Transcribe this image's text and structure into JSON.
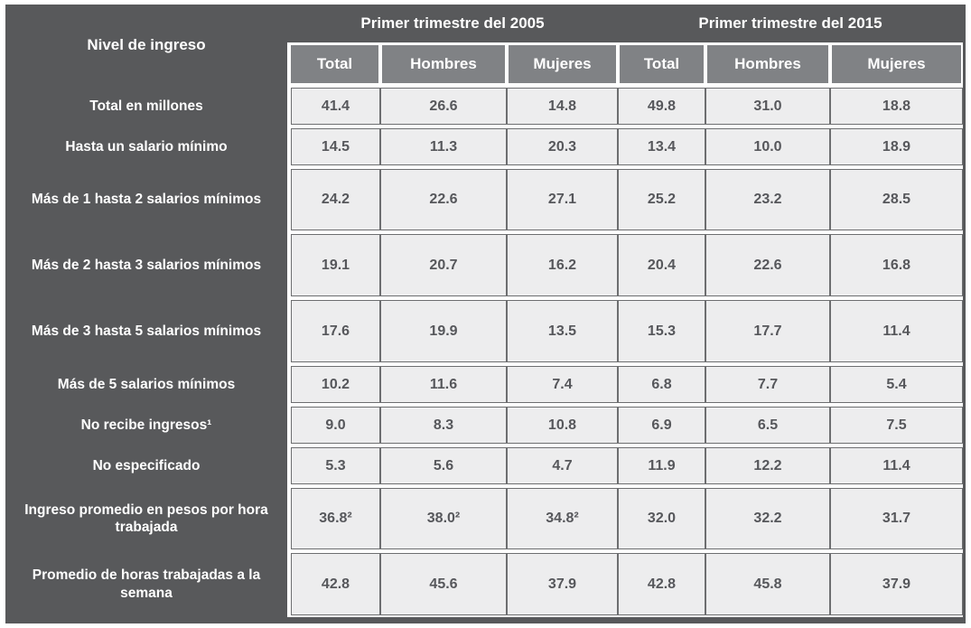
{
  "table": {
    "row_header_label": "Nivel de ingreso",
    "period_headers": {
      "p2005": "Primer trimestre del 2005",
      "p2015": "Primer trimestre del 2015"
    },
    "sub_headers": [
      "Total",
      "Hombres",
      "Mujeres",
      "Total",
      "Hombres",
      "Mujeres"
    ],
    "rows": [
      {
        "label": "Total en millones",
        "values": [
          "41.4",
          "26.6",
          "14.8",
          "49.8",
          "31.0",
          "18.8"
        ]
      },
      {
        "label": "Hasta un salario mínimo",
        "values": [
          "14.5",
          "11.3",
          "20.3",
          "13.4",
          "10.0",
          "18.9"
        ]
      },
      {
        "label": "Más de 1 hasta 2 salarios mínimos",
        "values": [
          "24.2",
          "22.6",
          "27.1",
          "25.2",
          "23.2",
          "28.5"
        ]
      },
      {
        "label": "Más de 2 hasta 3 salarios mínimos",
        "values": [
          "19.1",
          "20.7",
          "16.2",
          "20.4",
          "22.6",
          "16.8"
        ]
      },
      {
        "label": "Más de 3 hasta 5 salarios mínimos",
        "values": [
          "17.6",
          "19.9",
          "13.5",
          "15.3",
          "17.7",
          "11.4"
        ]
      },
      {
        "label": "Más de 5 salarios mínimos",
        "values": [
          "10.2",
          "11.6",
          "7.4",
          "6.8",
          "7.7",
          "5.4"
        ]
      },
      {
        "label": "No recibe ingresos¹",
        "values": [
          "9.0",
          "8.3",
          "10.8",
          "6.9",
          "6.5",
          "7.5"
        ]
      },
      {
        "label": "No especificado",
        "values": [
          "5.3",
          "5.6",
          "4.7",
          "11.9",
          "12.2",
          "11.4"
        ]
      },
      {
        "label": "Ingreso promedio en pesos por hora trabajada",
        "values": [
          "36.8²",
          "38.0²",
          "34.8²",
          "32.0",
          "32.2",
          "31.7"
        ]
      },
      {
        "label": "Promedio de horas trabajadas a la semana",
        "values": [
          "42.8",
          "45.6",
          "37.9",
          "42.8",
          "45.8",
          "37.9"
        ]
      }
    ]
  },
  "colors": {
    "header_dark": "#58595b",
    "subheader_gray": "#808285",
    "cell_background": "#ededee",
    "cell_border": "#6d6e70",
    "cell_text": "#56575b",
    "header_text": "#ffffff"
  },
  "chart_data": {
    "type": "table",
    "title": "Nivel de ingreso",
    "column_groups": [
      "Primer trimestre del 2005",
      "Primer trimestre del 2015"
    ],
    "columns": [
      "Total 2005",
      "Hombres 2005",
      "Mujeres 2005",
      "Total 2015",
      "Hombres 2015",
      "Mujeres 2015"
    ],
    "row_labels": [
      "Total en millones",
      "Hasta un salario mínimo",
      "Más de 1 hasta 2 salarios mínimos",
      "Más de 2 hasta 3 salarios mínimos",
      "Más de 3 hasta 5 salarios mínimos",
      "Más de 5 salarios mínimos",
      "No recibe ingresos¹",
      "No especificado",
      "Ingreso promedio en pesos por hora trabajada",
      "Promedio de horas trabajadas a la semana"
    ],
    "values": [
      [
        41.4,
        26.6,
        14.8,
        49.8,
        31.0,
        18.8
      ],
      [
        14.5,
        11.3,
        20.3,
        13.4,
        10.0,
        18.9
      ],
      [
        24.2,
        22.6,
        27.1,
        25.2,
        23.2,
        28.5
      ],
      [
        19.1,
        20.7,
        16.2,
        20.4,
        22.6,
        16.8
      ],
      [
        17.6,
        19.9,
        13.5,
        15.3,
        17.7,
        11.4
      ],
      [
        10.2,
        11.6,
        7.4,
        6.8,
        7.7,
        5.4
      ],
      [
        9.0,
        8.3,
        10.8,
        6.9,
        6.5,
        7.5
      ],
      [
        5.3,
        5.6,
        4.7,
        11.9,
        12.2,
        11.4
      ],
      [
        36.8,
        38.0,
        34.8,
        32.0,
        32.2,
        31.7
      ],
      [
        42.8,
        45.6,
        37.9,
        42.8,
        45.8,
        37.9
      ]
    ],
    "footnote_markers": {
      "row_6_label": "superscript 1",
      "row_8_2005_values": "superscript 2"
    }
  }
}
